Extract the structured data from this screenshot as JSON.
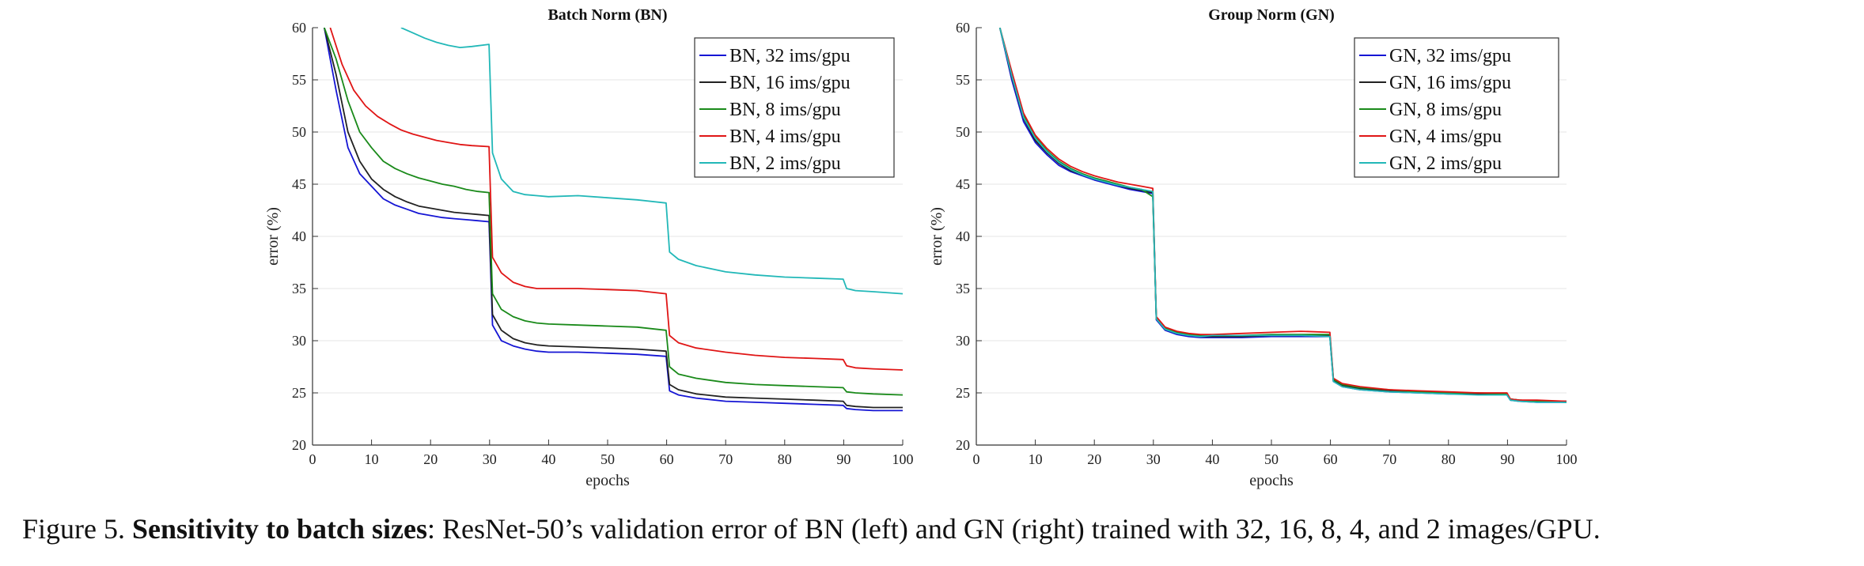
{
  "caption": {
    "prefix": "Figure 5. ",
    "bold": "Sensitivity to batch sizes",
    "rest": ": ResNet-50’s validation error of BN (left) and GN (right) trained with 32, 16, 8, 4, and 2 images/GPU."
  },
  "chart_data": [
    {
      "type": "line",
      "title": "Batch Norm (BN)",
      "xlabel": "epochs",
      "ylabel": "error (%)",
      "xlim": [
        0,
        100
      ],
      "ylim": [
        20,
        60
      ],
      "xticks": [
        0,
        10,
        20,
        30,
        40,
        50,
        60,
        70,
        80,
        90,
        100
      ],
      "yticks": [
        20,
        25,
        30,
        35,
        40,
        45,
        50,
        55,
        60
      ],
      "grid": "horizontal",
      "legend": "top-right",
      "series": [
        {
          "name": "BN, 32 ims/gpu",
          "color": "#1515d4",
          "x": [
            2,
            4,
            6,
            8,
            10,
            12,
            14,
            16,
            18,
            20,
            22,
            24,
            26,
            28,
            29.9,
            30.5,
            32,
            34,
            36,
            38,
            40,
            45,
            50,
            55,
            59.9,
            60.5,
            62,
            65,
            70,
            75,
            80,
            85,
            89.9,
            90.5,
            92,
            95,
            100
          ],
          "y": [
            60,
            54,
            48.5,
            46,
            44.8,
            43.6,
            43,
            42.6,
            42.2,
            42,
            41.8,
            41.7,
            41.6,
            41.5,
            41.4,
            31.5,
            30,
            29.5,
            29.2,
            29,
            28.9,
            28.9,
            28.8,
            28.7,
            28.5,
            25.2,
            24.8,
            24.5,
            24.2,
            24.1,
            24,
            23.9,
            23.8,
            23.5,
            23.4,
            23.3,
            23.3
          ]
        },
        {
          "name": "BN, 16 ims/gpu",
          "color": "#222222",
          "x": [
            2,
            4,
            6,
            8,
            10,
            12,
            14,
            16,
            18,
            20,
            22,
            24,
            26,
            28,
            29.9,
            30.5,
            32,
            34,
            36,
            38,
            40,
            45,
            50,
            55,
            59.9,
            60.5,
            62,
            65,
            70,
            75,
            80,
            85,
            89.9,
            90.5,
            92,
            95,
            100
          ],
          "y": [
            60,
            55.5,
            50,
            47.2,
            45.5,
            44.5,
            43.8,
            43.3,
            42.9,
            42.7,
            42.5,
            42.3,
            42.2,
            42.1,
            42,
            32.5,
            31,
            30.2,
            29.8,
            29.6,
            29.5,
            29.4,
            29.3,
            29.2,
            29,
            25.8,
            25.3,
            24.9,
            24.6,
            24.5,
            24.4,
            24.3,
            24.2,
            23.8,
            23.7,
            23.6,
            23.6
          ]
        },
        {
          "name": "BN, 8 ims/gpu",
          "color": "#1a8a1a",
          "x": [
            2,
            4,
            6,
            8,
            10,
            12,
            14,
            16,
            18,
            20,
            22,
            24,
            26,
            28,
            29.9,
            30.5,
            32,
            34,
            36,
            38,
            40,
            45,
            50,
            55,
            59.9,
            60.5,
            62,
            65,
            70,
            75,
            80,
            85,
            89.9,
            90.5,
            92,
            95,
            100
          ],
          "y": [
            60,
            57,
            53,
            50,
            48.5,
            47.2,
            46.5,
            46,
            45.6,
            45.3,
            45,
            44.8,
            44.5,
            44.3,
            44.2,
            34.5,
            33,
            32.3,
            31.9,
            31.7,
            31.6,
            31.5,
            31.4,
            31.3,
            31,
            27.5,
            26.8,
            26.4,
            26,
            25.8,
            25.7,
            25.6,
            25.5,
            25.1,
            25,
            24.9,
            24.8
          ]
        },
        {
          "name": "BN, 4 ims/gpu",
          "color": "#e01515",
          "x": [
            3,
            5,
            7,
            9,
            11,
            13,
            15,
            17,
            19,
            21,
            23,
            25,
            27,
            29.9,
            30.5,
            32,
            34,
            36,
            38,
            40,
            45,
            50,
            55,
            59.9,
            60.5,
            62,
            65,
            70,
            75,
            80,
            85,
            89.9,
            90.5,
            92,
            95,
            100
          ],
          "y": [
            60,
            56.5,
            54,
            52.5,
            51.5,
            50.8,
            50.2,
            49.8,
            49.5,
            49.2,
            49,
            48.8,
            48.7,
            48.6,
            38,
            36.5,
            35.6,
            35.2,
            35,
            35,
            35,
            34.9,
            34.8,
            34.5,
            30.5,
            29.8,
            29.3,
            28.9,
            28.6,
            28.4,
            28.3,
            28.2,
            27.6,
            27.4,
            27.3,
            27.2
          ]
        },
        {
          "name": "BN, 2 ims/gpu",
          "color": "#22b8b8",
          "x": [
            15,
            17,
            19,
            21,
            23,
            25,
            27,
            29.9,
            30.5,
            32,
            34,
            36,
            38,
            40,
            45,
            50,
            55,
            59.9,
            60.5,
            62,
            65,
            70,
            75,
            80,
            85,
            89.9,
            90.5,
            92,
            95,
            100
          ],
          "y": [
            60,
            59.5,
            59,
            58.6,
            58.3,
            58.1,
            58.2,
            58.4,
            48,
            45.5,
            44.3,
            44,
            43.9,
            43.8,
            43.9,
            43.7,
            43.5,
            43.2,
            38.5,
            37.8,
            37.2,
            36.6,
            36.3,
            36.1,
            36,
            35.9,
            35,
            34.8,
            34.7,
            34.5
          ]
        }
      ]
    },
    {
      "type": "line",
      "title": "Group Norm (GN)",
      "xlabel": "epochs",
      "ylabel": "error (%)",
      "xlim": [
        0,
        100
      ],
      "ylim": [
        20,
        60
      ],
      "xticks": [
        0,
        10,
        20,
        30,
        40,
        50,
        60,
        70,
        80,
        90,
        100
      ],
      "yticks": [
        20,
        25,
        30,
        35,
        40,
        45,
        50,
        55,
        60
      ],
      "grid": "horizontal",
      "legend": "top-right",
      "series": [
        {
          "name": "GN, 32 ims/gpu",
          "color": "#1515d4",
          "x": [
            4,
            6,
            8,
            10,
            12,
            14,
            16,
            18,
            20,
            22,
            24,
            26,
            28,
            29.9,
            30.5,
            32,
            34,
            36,
            38,
            40,
            45,
            50,
            55,
            59.9,
            60.5,
            62,
            65,
            70,
            75,
            80,
            85,
            89.9,
            90.5,
            92,
            95,
            100
          ],
          "y": [
            60,
            55,
            51,
            49,
            47.8,
            46.8,
            46.2,
            45.8,
            45.4,
            45.1,
            44.8,
            44.5,
            44.3,
            44.1,
            32,
            31,
            30.6,
            30.4,
            30.3,
            30.3,
            30.3,
            30.4,
            30.4,
            30.4,
            26.1,
            25.6,
            25.3,
            25.1,
            25,
            24.9,
            24.9,
            24.8,
            24.3,
            24.2,
            24.1,
            24.1
          ]
        },
        {
          "name": "GN, 16 ims/gpu",
          "color": "#222222",
          "x": [
            4,
            6,
            8,
            10,
            12,
            14,
            16,
            18,
            20,
            22,
            24,
            26,
            28,
            29.9,
            30.5,
            32,
            34,
            36,
            38,
            40,
            45,
            50,
            55,
            59.9,
            60.5,
            62,
            65,
            70,
            75,
            80,
            85,
            89.9,
            90.5,
            92,
            95,
            100
          ],
          "y": [
            60,
            55.3,
            51.3,
            49.2,
            48,
            47,
            46.3,
            45.9,
            45.5,
            45.2,
            44.9,
            44.6,
            44.4,
            44.2,
            32.1,
            31.1,
            30.7,
            30.5,
            30.4,
            30.4,
            30.4,
            30.5,
            30.5,
            30.5,
            26.2,
            25.7,
            25.4,
            25.2,
            25.1,
            25,
            24.9,
            24.9,
            24.4,
            24.3,
            24.2,
            24.2
          ]
        },
        {
          "name": "GN, 8 ims/gpu",
          "color": "#1a8a1a",
          "x": [
            4,
            6,
            8,
            10,
            12,
            14,
            16,
            18,
            20,
            22,
            24,
            26,
            28,
            29.9,
            30.5,
            32,
            34,
            36,
            38,
            40,
            45,
            50,
            55,
            59.9,
            60.5,
            62,
            65,
            70,
            75,
            80,
            85,
            89.9,
            90.5,
            92,
            95,
            100
          ],
          "y": [
            60,
            55.6,
            51.6,
            49.5,
            48.2,
            47.2,
            46.5,
            46,
            45.6,
            45.3,
            45,
            44.7,
            44.5,
            43.8,
            32.2,
            31.2,
            30.8,
            30.6,
            30.5,
            30.5,
            30.5,
            30.6,
            30.6,
            30.6,
            26.3,
            25.8,
            25.5,
            25.3,
            25.1,
            25,
            25,
            24.9,
            24.4,
            24.3,
            24.2,
            24.1
          ]
        },
        {
          "name": "GN, 4 ims/gpu",
          "color": "#e01515",
          "x": [
            4,
            6,
            8,
            10,
            12,
            14,
            16,
            18,
            20,
            22,
            24,
            26,
            28,
            29.9,
            30.5,
            32,
            34,
            36,
            38,
            40,
            45,
            50,
            55,
            59.9,
            60.5,
            62,
            65,
            70,
            75,
            80,
            85,
            89.9,
            90.5,
            92,
            95,
            100
          ],
          "y": [
            60,
            55.8,
            51.8,
            49.7,
            48.4,
            47.4,
            46.7,
            46.2,
            45.8,
            45.5,
            45.2,
            45,
            44.8,
            44.6,
            32.3,
            31.3,
            30.9,
            30.7,
            30.6,
            30.6,
            30.7,
            30.8,
            30.9,
            30.8,
            26.4,
            25.9,
            25.6,
            25.3,
            25.2,
            25.1,
            25,
            25,
            24.4,
            24.3,
            24.3,
            24.2
          ]
        },
        {
          "name": "GN, 2 ims/gpu",
          "color": "#22b8b8",
          "x": [
            4,
            6,
            8,
            10,
            12,
            14,
            16,
            18,
            20,
            22,
            24,
            26,
            28,
            29.9,
            30.5,
            32,
            34,
            36,
            38,
            40,
            45,
            50,
            55,
            59.9,
            60.5,
            62,
            65,
            70,
            75,
            80,
            85,
            89.9,
            90.5,
            92,
            95,
            100
          ],
          "y": [
            60,
            55.4,
            51.4,
            49.4,
            48.1,
            47.1,
            46.4,
            45.9,
            45.5,
            45.2,
            44.9,
            44.7,
            44.5,
            44.3,
            32.1,
            31.1,
            30.7,
            30.5,
            30.4,
            30.5,
            30.5,
            30.5,
            30.5,
            30.4,
            26.1,
            25.6,
            25.3,
            25.1,
            25,
            24.9,
            24.8,
            24.8,
            24.3,
            24.2,
            24.1,
            24.1
          ]
        }
      ]
    }
  ]
}
